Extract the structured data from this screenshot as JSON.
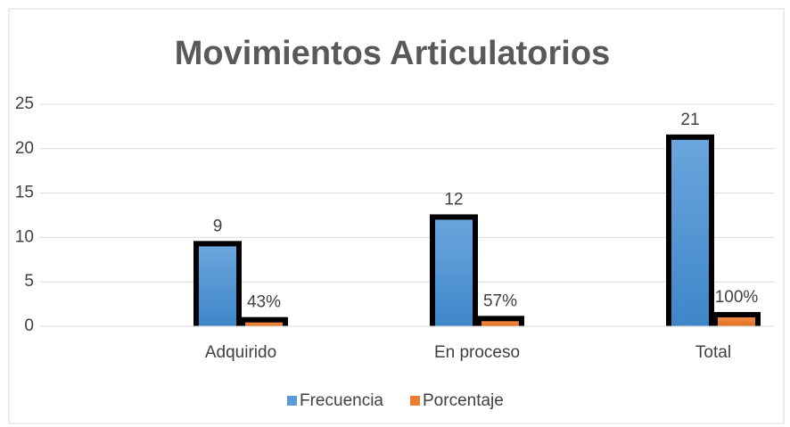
{
  "chart_data": {
    "type": "bar",
    "title": "Movimientos Articulatorios",
    "categories": [
      "Adquirido",
      "En proceso",
      "Total"
    ],
    "series": [
      {
        "name": "Frecuencia",
        "color": "#5b9bd5",
        "values": [
          9,
          12,
          21
        ]
      },
      {
        "name": "Porcentaje",
        "color": "#ed7d31",
        "values": [
          0.43,
          0.57,
          1
        ],
        "value_labels": [
          "43%",
          "57%",
          "100%"
        ]
      }
    ],
    "ylim": [
      0,
      25
    ],
    "yticks": [
      0,
      5,
      10,
      15,
      20,
      25
    ],
    "grid": true,
    "legend": "bottom"
  }
}
